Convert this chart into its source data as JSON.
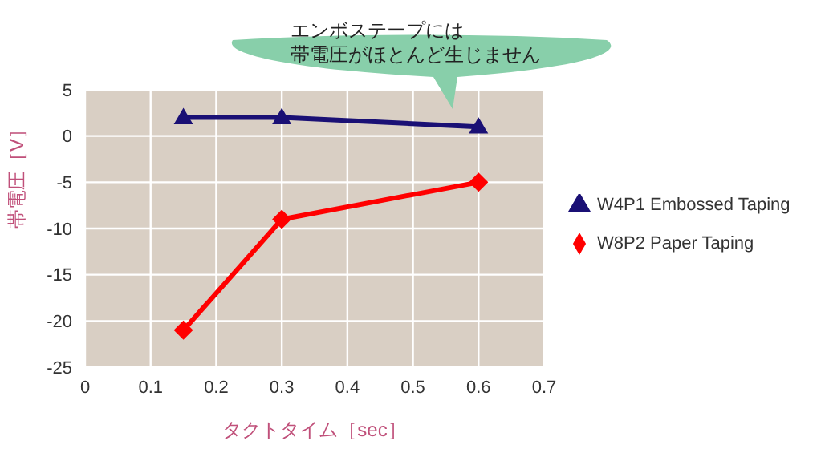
{
  "chart_data": {
    "type": "line",
    "xlabel": "タクトタイム［sec］",
    "ylabel": "帯電圧［V］",
    "annotations": [
      "エンボステープには帯電圧がほとんど生じません"
    ],
    "x": [
      0.15,
      0.3,
      0.6
    ],
    "series": [
      {
        "name": "W8P2 Paper Taping",
        "color": "#ff0000",
        "marker": "diamond",
        "values": [
          -21,
          -9,
          -5
        ]
      },
      {
        "name": "W4P1 Embossed Taping",
        "color": "#1a1075",
        "marker": "triangle",
        "values": [
          2,
          2,
          1
        ]
      }
    ],
    "xlim": [
      0,
      0.7
    ],
    "xticks": [
      0,
      0.1,
      0.2,
      0.3,
      0.4,
      0.5,
      0.6,
      0.7
    ],
    "ylim": [
      -25,
      5
    ],
    "yticks": [
      -25,
      -20,
      -15,
      -10,
      -5,
      0,
      5
    ],
    "grid": true,
    "legend": "right",
    "line_style": "solid"
  }
}
